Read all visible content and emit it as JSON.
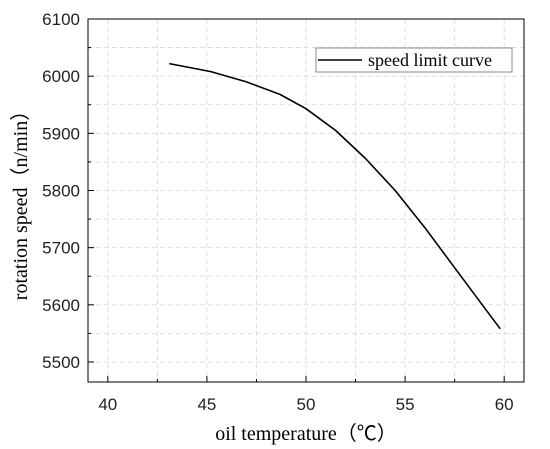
{
  "chart_data": {
    "type": "line",
    "title": "",
    "xlabel": "oil temperature（℃）",
    "ylabel": "rotation speed（n/min）",
    "xlim": [
      39,
      61
    ],
    "ylim": [
      5465,
      6100
    ],
    "xticks": [
      "40",
      "45",
      "50",
      "55",
      "60"
    ],
    "yticks": [
      "5500",
      "5600",
      "5700",
      "5800",
      "5900",
      "6000",
      "6100"
    ],
    "grid": true,
    "legend_position": "top-right",
    "series": [
      {
        "name": "speed limit curve",
        "color": "#000000",
        "x": [
          43.1,
          45.2,
          47.0,
          48.7,
          50.0,
          51.5,
          53.0,
          54.5,
          56.0,
          57.5,
          59.0,
          59.8
        ],
        "y": [
          6022,
          6008,
          5990,
          5968,
          5943,
          5905,
          5856,
          5800,
          5735,
          5665,
          5595,
          5558
        ]
      }
    ]
  }
}
